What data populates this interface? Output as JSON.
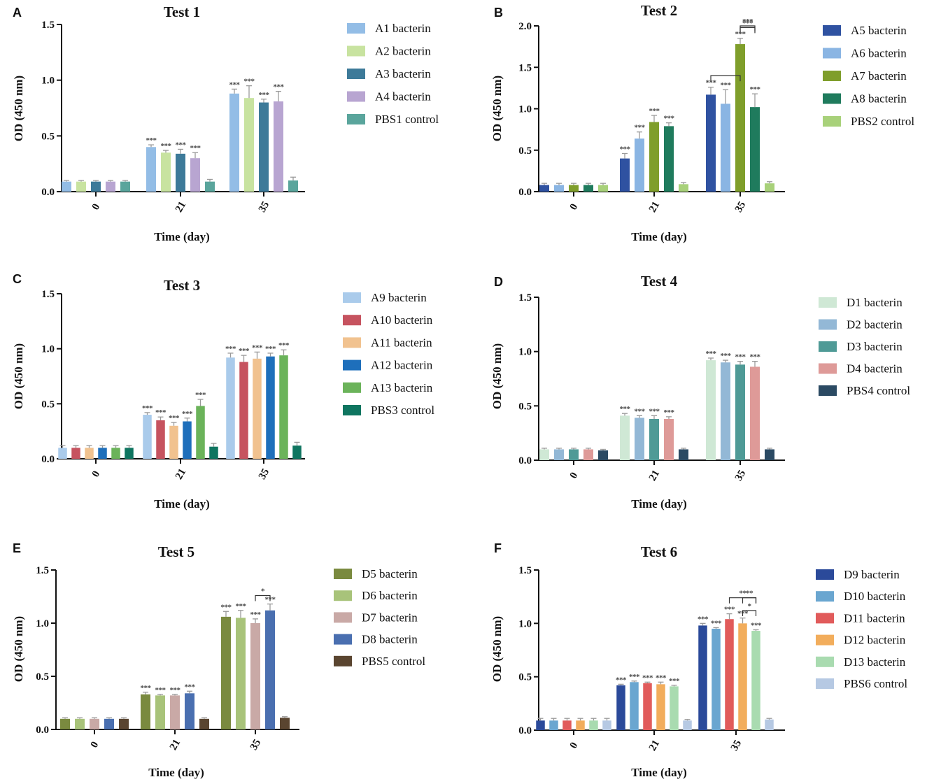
{
  "chart_data": [
    {
      "panel": "A",
      "type": "bar",
      "title": "Test 1",
      "xlabel": "Time (day)",
      "ylabel": "OD (450 nm)",
      "ylim": [
        0,
        1.5
      ],
      "yticks": [
        "0.0",
        "0.5",
        "1.0",
        "1.5"
      ],
      "categories": [
        "0",
        "21",
        "35"
      ],
      "series": [
        {
          "name": "A1 bacterin",
          "color": "#93bde6",
          "values": [
            0.09,
            0.4,
            0.88
          ],
          "errors": [
            0.01,
            0.02,
            0.04
          ],
          "stars": [
            "",
            "***",
            "***"
          ]
        },
        {
          "name": "A2 bacterin",
          "color": "#c8e3a0",
          "values": [
            0.09,
            0.35,
            0.84
          ],
          "errors": [
            0.01,
            0.02,
            0.11
          ],
          "stars": [
            "",
            "***",
            "***"
          ]
        },
        {
          "name": "A3 bacterin",
          "color": "#3d7a99",
          "values": [
            0.09,
            0.34,
            0.8
          ],
          "errors": [
            0.01,
            0.04,
            0.03
          ],
          "stars": [
            "",
            "***",
            "***"
          ]
        },
        {
          "name": "A4 bacterin",
          "color": "#b8a5d1",
          "values": [
            0.09,
            0.3,
            0.81
          ],
          "errors": [
            0.01,
            0.05,
            0.09
          ],
          "stars": [
            "",
            "***",
            "***"
          ]
        },
        {
          "name": "PBS1 control",
          "color": "#5aa59c",
          "values": [
            0.09,
            0.09,
            0.1
          ],
          "errors": [
            0.01,
            0.02,
            0.03
          ],
          "stars": [
            "",
            "",
            ""
          ]
        }
      ],
      "brackets": []
    },
    {
      "panel": "B",
      "type": "bar",
      "title": "Test 2",
      "xlabel": "Time (day)",
      "ylabel": "OD (450 nm)",
      "ylim": [
        0,
        2.0
      ],
      "yticks": [
        "0.0",
        "0.5",
        "1.0",
        "1.5",
        "2.0"
      ],
      "categories": [
        "0",
        "21",
        "35"
      ],
      "series": [
        {
          "name": "A5 bacterin",
          "color": "#2f52a1",
          "values": [
            0.08,
            0.4,
            1.17
          ],
          "errors": [
            0.02,
            0.06,
            0.09
          ],
          "stars": [
            "",
            "***",
            "***"
          ]
        },
        {
          "name": "A6 bacterin",
          "color": "#8ab5e3",
          "values": [
            0.08,
            0.64,
            1.06
          ],
          "errors": [
            0.02,
            0.08,
            0.17
          ],
          "stars": [
            "",
            "***",
            "***"
          ]
        },
        {
          "name": "A7 bacterin",
          "color": "#7f9e2b",
          "values": [
            0.08,
            0.84,
            1.78
          ],
          "errors": [
            0.02,
            0.08,
            0.07
          ],
          "stars": [
            "",
            "***",
            "***"
          ]
        },
        {
          "name": "A8 bacterin",
          "color": "#1f7b5d",
          "values": [
            0.08,
            0.79,
            1.02
          ],
          "errors": [
            0.02,
            0.04,
            0.16
          ],
          "stars": [
            "",
            "***",
            "***"
          ]
        },
        {
          "name": "PBS2 control",
          "color": "#a8d17a",
          "values": [
            0.08,
            0.09,
            0.1
          ],
          "errors": [
            0.02,
            0.02,
            0.02
          ],
          "stars": [
            "",
            "",
            ""
          ]
        }
      ],
      "brackets": [
        {
          "from": 0,
          "to": 2,
          "group": 2,
          "y": 1.4,
          "label": ""
        },
        {
          "from": 2,
          "to": 3,
          "group": 2,
          "y": 2.0,
          "label": "***"
        },
        {
          "from": 2,
          "to": 3,
          "group": 2,
          "y": 1.98,
          "label": "***"
        }
      ]
    },
    {
      "panel": "C",
      "type": "bar",
      "title": "Test 3",
      "xlabel": "Time (day)",
      "ylabel": "OD (450 nm)",
      "ylim": [
        0,
        1.5
      ],
      "yticks": [
        "0.0",
        "0.5",
        "1.0",
        "1.5"
      ],
      "categories": [
        "0",
        "21",
        "35"
      ],
      "series": [
        {
          "name": "A9 bacterin",
          "color": "#aacbeb",
          "values": [
            0.1,
            0.4,
            0.92
          ],
          "errors": [
            0.02,
            0.02,
            0.04
          ],
          "stars": [
            "",
            "***",
            "***"
          ]
        },
        {
          "name": "A10 bacterin",
          "color": "#c6535f",
          "values": [
            0.1,
            0.35,
            0.88
          ],
          "errors": [
            0.02,
            0.03,
            0.06
          ],
          "stars": [
            "",
            "***",
            "***"
          ]
        },
        {
          "name": "A11 bacterin",
          "color": "#f1c28f",
          "values": [
            0.1,
            0.3,
            0.91
          ],
          "errors": [
            0.02,
            0.03,
            0.06
          ],
          "stars": [
            "",
            "***",
            "***"
          ]
        },
        {
          "name": "A12 bacterin",
          "color": "#1e6fbb",
          "values": [
            0.1,
            0.34,
            0.93
          ],
          "errors": [
            0.02,
            0.03,
            0.03
          ],
          "stars": [
            "",
            "***",
            "***"
          ]
        },
        {
          "name": "A13 bacterin",
          "color": "#6bb35a",
          "values": [
            0.1,
            0.48,
            0.94
          ],
          "errors": [
            0.02,
            0.06,
            0.05
          ],
          "stars": [
            "",
            "***",
            "***"
          ]
        },
        {
          "name": "PBS3 control",
          "color": "#0f7560",
          "values": [
            0.1,
            0.11,
            0.12
          ],
          "errors": [
            0.02,
            0.03,
            0.03
          ],
          "stars": [
            "",
            "",
            ""
          ]
        }
      ],
      "brackets": []
    },
    {
      "panel": "D",
      "type": "bar",
      "title": "Test 4",
      "xlabel": "Time (day)",
      "ylabel": "OD (450 nm)",
      "ylim": [
        0,
        1.5
      ],
      "yticks": [
        "0.0",
        "0.5",
        "1.0",
        "1.5"
      ],
      "categories": [
        "0",
        "21",
        "35"
      ],
      "series": [
        {
          "name": "D1 bacterin",
          "color": "#cfe8d5",
          "values": [
            0.1,
            0.41,
            0.92
          ],
          "errors": [
            0.01,
            0.02,
            0.02
          ],
          "stars": [
            "",
            "***",
            "***"
          ]
        },
        {
          "name": "D2 bacterin",
          "color": "#93b8d6",
          "values": [
            0.1,
            0.39,
            0.9
          ],
          "errors": [
            0.01,
            0.02,
            0.02
          ],
          "stars": [
            "",
            "***",
            "***"
          ]
        },
        {
          "name": "D3 bacterin",
          "color": "#4f9a96",
          "values": [
            0.1,
            0.38,
            0.88
          ],
          "errors": [
            0.01,
            0.03,
            0.03
          ],
          "stars": [
            "",
            "***",
            "***"
          ]
        },
        {
          "name": "D4 bacterin",
          "color": "#de9a98",
          "values": [
            0.1,
            0.38,
            0.86
          ],
          "errors": [
            0.01,
            0.02,
            0.05
          ],
          "stars": [
            "",
            "***",
            "***"
          ]
        },
        {
          "name": "PBS4 control",
          "color": "#2b4a63",
          "values": [
            0.09,
            0.1,
            0.1
          ],
          "errors": [
            0.01,
            0.01,
            0.01
          ],
          "stars": [
            "",
            "",
            ""
          ]
        }
      ],
      "brackets": []
    },
    {
      "panel": "E",
      "type": "bar",
      "title": "Test 5",
      "xlabel": "Time (day)",
      "ylabel": "OD (450 nm)",
      "ylim": [
        0,
        1.5
      ],
      "yticks": [
        "0.0",
        "0.5",
        "1.0",
        "1.5"
      ],
      "categories": [
        "0",
        "21",
        "35"
      ],
      "series": [
        {
          "name": "D5 bacterin",
          "color": "#7a8a3f",
          "values": [
            0.1,
            0.33,
            1.06
          ],
          "errors": [
            0.01,
            0.02,
            0.05
          ],
          "stars": [
            "",
            "***",
            "***"
          ]
        },
        {
          "name": "D6 bacterin",
          "color": "#a8c37a",
          "values": [
            0.1,
            0.32,
            1.05
          ],
          "errors": [
            0.01,
            0.01,
            0.07
          ],
          "stars": [
            "",
            "***",
            "***"
          ]
        },
        {
          "name": "D7 bacterin",
          "color": "#c9a9a6",
          "values": [
            0.1,
            0.32,
            1.0
          ],
          "errors": [
            0.01,
            0.01,
            0.04
          ],
          "stars": [
            "",
            "***",
            "***"
          ]
        },
        {
          "name": "D8 bacterin",
          "color": "#4a6fb0",
          "values": [
            0.1,
            0.34,
            1.12
          ],
          "errors": [
            0.01,
            0.02,
            0.06
          ],
          "stars": [
            "",
            "***",
            "***"
          ]
        },
        {
          "name": "PBS5 control",
          "color": "#5a4530",
          "values": [
            0.1,
            0.1,
            0.11
          ],
          "errors": [
            0.01,
            0.01,
            0.01
          ],
          "stars": [
            "",
            "",
            ""
          ]
        }
      ],
      "brackets": [
        {
          "from": 2,
          "to": 3,
          "group": 2,
          "y": 1.26,
          "label": "*"
        }
      ]
    },
    {
      "panel": "F",
      "type": "bar",
      "title": "Test 6",
      "xlabel": "Time (day)",
      "ylabel": "OD (450 nm)",
      "ylim": [
        0,
        1.5
      ],
      "yticks": [
        "0.0",
        "0.5",
        "1.0",
        "1.5"
      ],
      "categories": [
        "0",
        "21",
        "35"
      ],
      "series": [
        {
          "name": "D9 bacterin",
          "color": "#2b4a9a",
          "values": [
            0.09,
            0.42,
            0.98
          ],
          "errors": [
            0.02,
            0.01,
            0.02
          ],
          "stars": [
            "",
            "***",
            "***"
          ]
        },
        {
          "name": "D10 bacterin",
          "color": "#6aa6d0",
          "values": [
            0.09,
            0.45,
            0.95
          ],
          "errors": [
            0.02,
            0.01,
            0.01
          ],
          "stars": [
            "",
            "***",
            "***"
          ]
        },
        {
          "name": "D11 bacterin",
          "color": "#e15b5b",
          "values": [
            0.09,
            0.44,
            1.04
          ],
          "errors": [
            0.02,
            0.01,
            0.05
          ],
          "stars": [
            "",
            "***",
            "***"
          ]
        },
        {
          "name": "D12 bacterin",
          "color": "#f2ad5c",
          "values": [
            0.09,
            0.43,
            1.0
          ],
          "errors": [
            0.02,
            0.02,
            0.05
          ],
          "stars": [
            "",
            "***",
            "***"
          ]
        },
        {
          "name": "D13 bacterin",
          "color": "#a9dbb0",
          "values": [
            0.09,
            0.41,
            0.93
          ],
          "errors": [
            0.02,
            0.01,
            0.01
          ],
          "stars": [
            "",
            "***",
            "***"
          ]
        },
        {
          "name": "PBS6 control",
          "color": "#b6c9e3",
          "values": [
            0.09,
            0.09,
            0.1
          ],
          "errors": [
            0.02,
            0.01,
            0.01
          ],
          "stars": [
            "",
            "",
            ""
          ]
        }
      ],
      "brackets": [
        {
          "from": 2,
          "to": 4,
          "group": 2,
          "y": 1.24,
          "label": "**"
        },
        {
          "from": 3,
          "to": 4,
          "group": 2,
          "y": 1.24,
          "label": "**"
        },
        {
          "from": 3,
          "to": 4,
          "group": 2,
          "y": 1.12,
          "label": "*"
        }
      ]
    }
  ]
}
